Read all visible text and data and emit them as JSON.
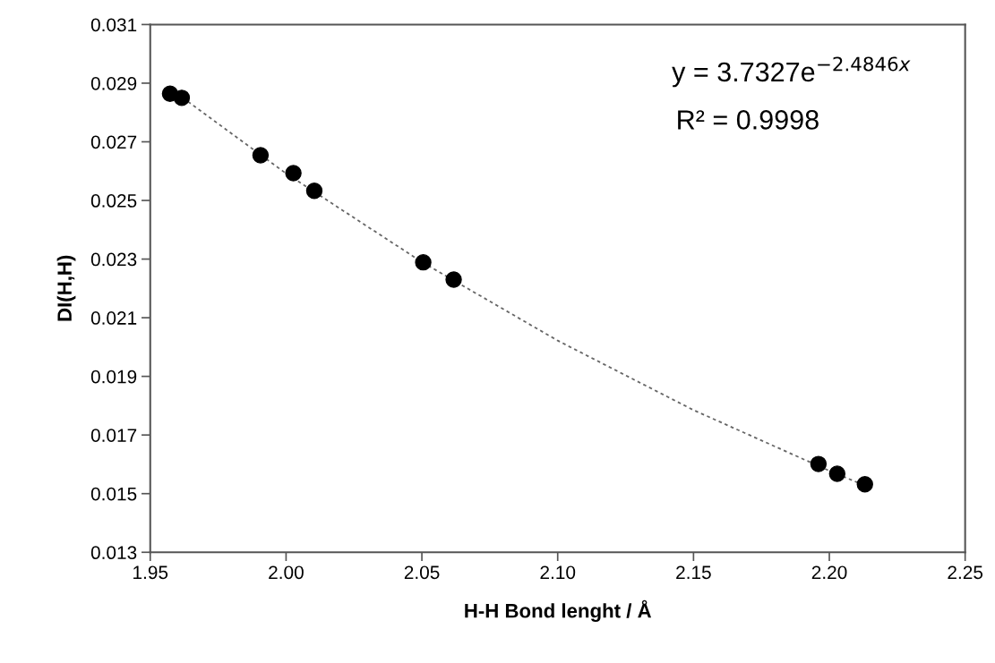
{
  "chart_data": {
    "type": "scatter",
    "xlabel": "H-H Bond lenght / Å",
    "ylabel": "DI(H,H)",
    "xlim": [
      1.95,
      2.25
    ],
    "xticks": [
      {
        "value": 1.95,
        "label": "1.95"
      },
      {
        "value": 2.0,
        "label": "2.00"
      },
      {
        "value": 2.05,
        "label": "2.05"
      },
      {
        "value": 2.1,
        "label": "2.10"
      },
      {
        "value": 2.15,
        "label": "2.15"
      },
      {
        "value": 2.2,
        "label": "2.20"
      },
      {
        "value": 2.25,
        "label": "2.25"
      }
    ],
    "ylim": [
      0.013,
      0.031
    ],
    "yticks": [
      0.013,
      0.015,
      0.017,
      0.019,
      0.021,
      0.023,
      0.025,
      0.027,
      0.029,
      0.031
    ],
    "grid": false,
    "legend": false,
    "marker": "circle",
    "series": [
      {
        "color": "#000000",
        "x": [
          1.9573,
          1.9616,
          1.9906,
          2.0027,
          2.0104,
          2.0505,
          2.0617,
          2.196,
          2.2029,
          2.2131
        ],
        "values": [
          0.02864,
          0.0285,
          0.02654,
          0.02593,
          0.02533,
          0.02289,
          0.0223,
          0.01601,
          0.01568,
          0.01532
        ]
      },
      {
        "type": "line",
        "color": "#666666",
        "line_style": "dotted",
        "marker": "none",
        "x": [
          1.962,
          2.0,
          2.05,
          2.1,
          2.15,
          2.2,
          2.213
        ],
        "values": [
          0.0285,
          0.02592,
          0.0229,
          0.02022,
          0.01785,
          0.01578,
          0.01528
        ]
      }
    ],
    "annotations": [
      "y = 3.7327e$^{−2.4846x}$",
      "R² = 0.9998"
    ]
  }
}
